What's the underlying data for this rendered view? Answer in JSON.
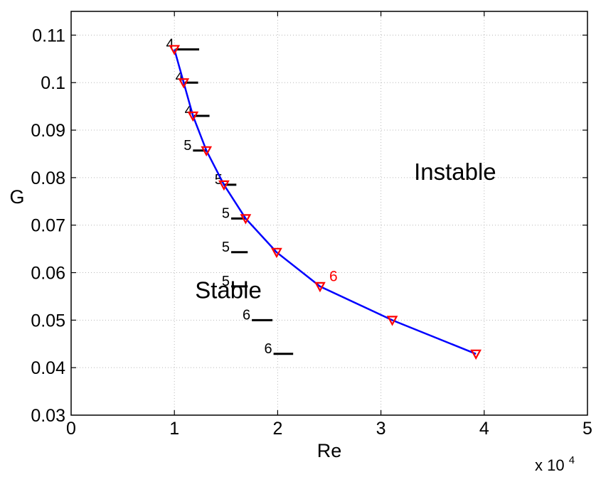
{
  "chart_data": {
    "type": "line",
    "xlabel": "Re",
    "ylabel": "G",
    "x_multiplier_label": "x 10",
    "x_multiplier_exponent": "4",
    "xlim": [
      0,
      50000
    ],
    "ylim": [
      0.03,
      0.115
    ],
    "grid": true,
    "x_ticks": [
      {
        "value": 0,
        "label": "0"
      },
      {
        "value": 10000,
        "label": "1"
      },
      {
        "value": 20000,
        "label": "2"
      },
      {
        "value": 30000,
        "label": "3"
      },
      {
        "value": 40000,
        "label": "4"
      },
      {
        "value": 50000,
        "label": "5"
      }
    ],
    "y_ticks": [
      {
        "value": 0.03,
        "label": "0.03"
      },
      {
        "value": 0.04,
        "label": "0.04"
      },
      {
        "value": 0.05,
        "label": "0.05"
      },
      {
        "value": 0.06,
        "label": "0.06"
      },
      {
        "value": 0.07,
        "label": "0.07"
      },
      {
        "value": 0.08,
        "label": "0.08"
      },
      {
        "value": 0.09,
        "label": "0.09"
      },
      {
        "value": 0.1,
        "label": "0.1"
      },
      {
        "value": 0.11,
        "label": "0.11"
      }
    ],
    "series": [
      {
        "color": "#0000ff",
        "marker": "triangle-down",
        "marker_color": "#ff0000",
        "x": [
          10000,
          10900,
          11800,
          13100,
          14800,
          16900,
          19900,
          24100,
          31100,
          39200
        ],
        "y": [
          0.107,
          0.1,
          0.093,
          0.0857,
          0.0785,
          0.0714,
          0.0643,
          0.0571,
          0.05,
          0.0429
        ]
      }
    ],
    "mode_segments": [
      {
        "label": "4",
        "x_start": 10100,
        "x_end": 12400,
        "y": 0.107
      },
      {
        "label": "4",
        "x_start": 11000,
        "x_end": 12300,
        "y": 0.1
      },
      {
        "label": "4",
        "x_start": 11900,
        "x_end": 13400,
        "y": 0.093
      },
      {
        "label": "5",
        "x_start": 11800,
        "x_end": 13100,
        "y": 0.0857
      },
      {
        "label": "5",
        "x_start": 14800,
        "x_end": 16000,
        "y": 0.0785
      },
      {
        "label": "5",
        "x_start": 15500,
        "x_end": 16900,
        "y": 0.0714
      },
      {
        "label": "5",
        "x_start": 15500,
        "x_end": 17100,
        "y": 0.0643
      },
      {
        "label": "5",
        "x_start": 15500,
        "x_end": 17100,
        "y": 0.0571
      },
      {
        "label": "6",
        "x_start": 17500,
        "x_end": 19500,
        "y": 0.05
      },
      {
        "label": "6",
        "x_start": 19600,
        "x_end": 21500,
        "y": 0.0429
      }
    ],
    "highlight_label": {
      "text": "6",
      "x": 25000,
      "y": 0.0582,
      "color": "#ff0000"
    },
    "annotations": [
      {
        "text": "Instable",
        "x": 33200,
        "y": 0.0795
      },
      {
        "text": "Stable",
        "x": 12000,
        "y": 0.0546
      }
    ]
  }
}
